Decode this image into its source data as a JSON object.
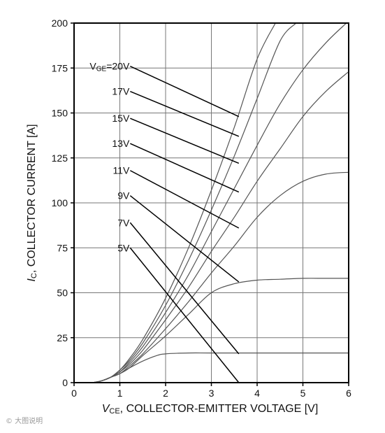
{
  "chart_data": {
    "type": "line",
    "xlabel": {
      "prefix": "V",
      "sub": "CE",
      "suffix": ", COLLECTOR-EMITTER VOLTAGE [V]"
    },
    "ylabel": {
      "prefix": "I",
      "sub": "C",
      "suffix": ", COLLECTOR CURRENT [A]"
    },
    "xlim": [
      0,
      6
    ],
    "ylim": [
      0,
      200
    ],
    "xticks": [
      0,
      1,
      2,
      3,
      4,
      5,
      6
    ],
    "yticks": [
      0,
      25,
      50,
      75,
      100,
      125,
      150,
      175,
      200
    ],
    "grid": true,
    "colors": {
      "curve": "#555555",
      "leader": "#000000",
      "grid": "#777777",
      "axis": "#000000"
    },
    "series": [
      {
        "name": "VGE=20V",
        "label_main": "V",
        "label_sub": "GE",
        "label_tail": "=20V",
        "label_at": [
          1.15,
          176
        ],
        "leader_to": [
          3.6,
          148
        ],
        "x": [
          0.4,
          0.6,
          0.8,
          1.0,
          1.2,
          1.5,
          2.0,
          2.5,
          3.0,
          3.5,
          4.0,
          4.4
        ],
        "y": [
          0,
          1,
          3,
          7,
          13,
          24,
          47,
          75,
          107,
          142,
          180,
          200
        ]
      },
      {
        "name": "17V",
        "label_main": "17V",
        "label_at": [
          1.15,
          162
        ],
        "leader_to": [
          3.6,
          137
        ],
        "x": [
          0.4,
          0.6,
          0.8,
          1.0,
          1.2,
          1.5,
          2.0,
          2.5,
          3.0,
          3.5,
          4.0,
          4.5,
          4.85
        ],
        "y": [
          0,
          1,
          3,
          7,
          12,
          22,
          43,
          68,
          96,
          126,
          158,
          190,
          200
        ]
      },
      {
        "name": "15V",
        "label_main": "15V",
        "label_at": [
          1.15,
          147
        ],
        "leader_to": [
          3.6,
          122
        ],
        "x": [
          0.4,
          0.6,
          0.8,
          1.0,
          1.2,
          1.5,
          2.0,
          2.5,
          3.0,
          3.5,
          4.0,
          4.5,
          5.0,
          5.5,
          5.95
        ],
        "y": [
          0,
          1,
          3,
          6,
          11,
          20,
          39,
          60,
          84,
          108,
          132,
          155,
          174,
          189,
          200
        ]
      },
      {
        "name": "13V",
        "label_main": "13V",
        "label_at": [
          1.15,
          133
        ],
        "leader_to": [
          3.6,
          106
        ],
        "x": [
          0.4,
          0.6,
          0.8,
          1.0,
          1.2,
          1.5,
          2.0,
          2.5,
          3.0,
          3.5,
          4.0,
          4.5,
          5.0,
          5.5,
          6.0
        ],
        "y": [
          0,
          1,
          3,
          6,
          10,
          18,
          35,
          53,
          73,
          92,
          112,
          130,
          148,
          162,
          173
        ]
      },
      {
        "name": "11V",
        "label_main": "11V",
        "label_at": [
          1.15,
          118
        ],
        "leader_to": [
          3.6,
          86
        ],
        "x": [
          0.4,
          0.6,
          0.8,
          1.0,
          1.2,
          1.5,
          2.0,
          2.5,
          3.0,
          3.5,
          4.0,
          4.5,
          5.0,
          5.5,
          6.0
        ],
        "y": [
          0,
          1,
          3,
          5,
          9,
          16,
          30,
          45,
          61,
          76,
          92,
          104,
          112,
          116,
          117
        ]
      },
      {
        "name": "9V",
        "label_main": "9V",
        "label_at": [
          1.15,
          104
        ],
        "leader_to": [
          3.6,
          56
        ],
        "x": [
          0.4,
          0.6,
          0.8,
          1.0,
          1.2,
          1.5,
          2.0,
          2.5,
          3.0,
          3.5,
          4.0,
          4.5,
          5.0,
          5.5,
          6.0
        ],
        "y": [
          0,
          1,
          3,
          5,
          8,
          15,
          26,
          38,
          50,
          55,
          57,
          57.5,
          58,
          58,
          58
        ]
      },
      {
        "name": "7V",
        "label_main": "7V",
        "label_at": [
          1.15,
          89
        ],
        "leader_to": [
          3.6,
          16
        ],
        "x": [
          0.4,
          0.6,
          0.8,
          1.0,
          1.2,
          1.5,
          1.8,
          2.0,
          2.5,
          3.0,
          4.0,
          5.0,
          6.0
        ],
        "y": [
          0,
          1,
          3,
          5,
          8,
          12,
          15,
          16,
          16.5,
          16.5,
          16.5,
          16.5,
          16.5
        ]
      },
      {
        "name": "5V",
        "label_main": "5V",
        "label_at": [
          1.15,
          75
        ],
        "leader_to": [
          3.6,
          0
        ],
        "x": [],
        "y": []
      }
    ]
  },
  "watermark": "© 大图说明"
}
